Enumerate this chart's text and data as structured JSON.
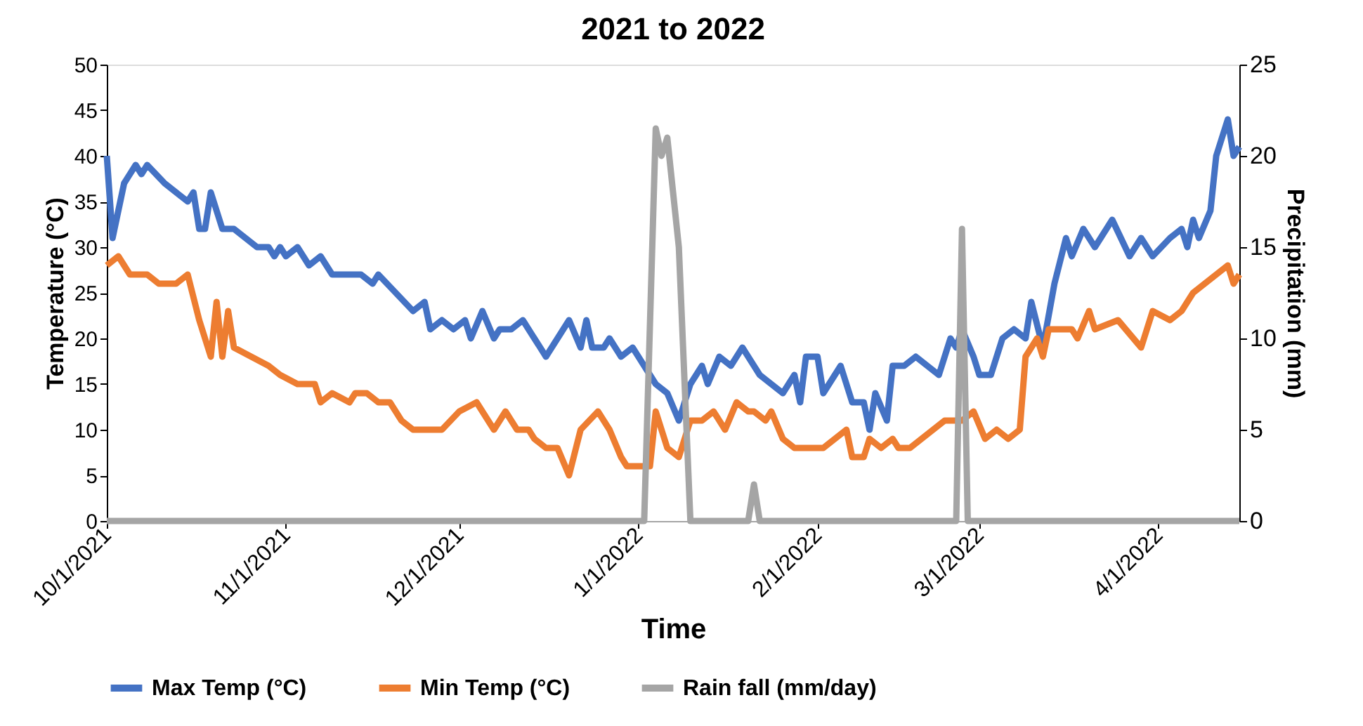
{
  "chart_data": {
    "type": "line",
    "title": "2021 to 2022",
    "xlabel": "Time",
    "ylabel": "Temperature (°C)",
    "y2label": "Precipitation (mm)",
    "xlim": [
      "2021-10-01",
      "2022-04-15"
    ],
    "xticks": [
      {
        "value": "2021-10-01",
        "label": "10/1/2021"
      },
      {
        "value": "2021-11-01",
        "label": "11/1/2021"
      },
      {
        "value": "2021-12-01",
        "label": "12/1/2021"
      },
      {
        "value": "2022-01-01",
        "label": "1/1/2022"
      },
      {
        "value": "2022-02-01",
        "label": "2/1/2022"
      },
      {
        "value": "2022-03-01",
        "label": "3/1/2022"
      },
      {
        "value": "2022-04-01",
        "label": "4/1/2022"
      }
    ],
    "ylim": [
      0,
      50
    ],
    "yticks": [
      0,
      5,
      10,
      15,
      20,
      25,
      30,
      35,
      40,
      45,
      50
    ],
    "y2lim": [
      0,
      25
    ],
    "y2ticks": [
      0,
      5,
      10,
      15,
      20,
      25
    ],
    "grid": false,
    "legend": "bottom",
    "line_style": "solid",
    "marker": "none",
    "series": [
      {
        "name": "Max Temp (°C)",
        "color": "#4472c4",
        "x": [
          "2021-10-01",
          "2021-10-02",
          "2021-10-04",
          "2021-10-06",
          "2021-10-07",
          "2021-10-08",
          "2021-10-11",
          "2021-10-13",
          "2021-10-15",
          "2021-10-16",
          "2021-10-17",
          "2021-10-18",
          "2021-10-19",
          "2021-10-21",
          "2021-10-23",
          "2021-10-25",
          "2021-10-27",
          "2021-10-29",
          "2021-10-30",
          "2021-10-31",
          "2021-11-01",
          "2021-11-03",
          "2021-11-05",
          "2021-11-07",
          "2021-11-09",
          "2021-11-12",
          "2021-11-14",
          "2021-11-16",
          "2021-11-17",
          "2021-11-20",
          "2021-11-23",
          "2021-11-25",
          "2021-11-26",
          "2021-11-28",
          "2021-11-30",
          "2021-12-02",
          "2021-12-03",
          "2021-12-05",
          "2021-12-07",
          "2021-12-08",
          "2021-12-10",
          "2021-12-12",
          "2021-12-14",
          "2021-12-16",
          "2021-12-18",
          "2021-12-20",
          "2021-12-22",
          "2021-12-23",
          "2021-12-24",
          "2021-12-26",
          "2021-12-27",
          "2021-12-29",
          "2021-12-31",
          "2022-01-02",
          "2022-01-04",
          "2022-01-06",
          "2022-01-08",
          "2022-01-10",
          "2022-01-12",
          "2022-01-13",
          "2022-01-15",
          "2022-01-17",
          "2022-01-19",
          "2022-01-22",
          "2022-01-24",
          "2022-01-26",
          "2022-01-28",
          "2022-01-29",
          "2022-01-30",
          "2022-02-01",
          "2022-02-02",
          "2022-02-05",
          "2022-02-07",
          "2022-02-09",
          "2022-02-10",
          "2022-02-11",
          "2022-02-13",
          "2022-02-14",
          "2022-02-16",
          "2022-02-18",
          "2022-02-20",
          "2022-02-22",
          "2022-02-24",
          "2022-02-25",
          "2022-02-26",
          "2022-02-28",
          "2022-03-01",
          "2022-03-03",
          "2022-03-05",
          "2022-03-07",
          "2022-03-09",
          "2022-03-10",
          "2022-03-12",
          "2022-03-14",
          "2022-03-16",
          "2022-03-17",
          "2022-03-19",
          "2022-03-21",
          "2022-03-24",
          "2022-03-27",
          "2022-03-29",
          "2022-03-31",
          "2022-04-03",
          "2022-04-05",
          "2022-04-06",
          "2022-04-07",
          "2022-04-08",
          "2022-04-10",
          "2022-04-11",
          "2022-04-13",
          "2022-04-14",
          "2022-04-15"
        ],
        "values": [
          40,
          31,
          37,
          39,
          38,
          39,
          37,
          36,
          35,
          36,
          32,
          32,
          36,
          32,
          32,
          31,
          30,
          30,
          29,
          30,
          29,
          30,
          28,
          29,
          27,
          27,
          27,
          26,
          27,
          25,
          23,
          24,
          21,
          22,
          21,
          22,
          20,
          23,
          20,
          21,
          21,
          22,
          20,
          18,
          20,
          22,
          19,
          22,
          19,
          19,
          20,
          18,
          19,
          17,
          15,
          14,
          11,
          15,
          17,
          15,
          18,
          17,
          19,
          16,
          15,
          14,
          16,
          13,
          18,
          18,
          14,
          17,
          13,
          13,
          10,
          14,
          11,
          17,
          17,
          18,
          17,
          16,
          20,
          19,
          21,
          18,
          16,
          16,
          20,
          21,
          20,
          24,
          19,
          26,
          31,
          29,
          32,
          30,
          33,
          29,
          31,
          29,
          31,
          32,
          30,
          33,
          31,
          34,
          40,
          44,
          40,
          41
        ]
      },
      {
        "name": "Min Temp (°C)",
        "color": "#ed7d31",
        "x": [
          "2021-10-01",
          "2021-10-03",
          "2021-10-05",
          "2021-10-08",
          "2021-10-10",
          "2021-10-13",
          "2021-10-15",
          "2021-10-17",
          "2021-10-19",
          "2021-10-20",
          "2021-10-21",
          "2021-10-22",
          "2021-10-23",
          "2021-10-26",
          "2021-10-29",
          "2021-10-31",
          "2021-11-03",
          "2021-11-06",
          "2021-11-07",
          "2021-11-09",
          "2021-11-12",
          "2021-11-13",
          "2021-11-15",
          "2021-11-17",
          "2021-11-19",
          "2021-11-21",
          "2021-11-23",
          "2021-11-26",
          "2021-11-28",
          "2021-12-01",
          "2021-12-04",
          "2021-12-07",
          "2021-12-09",
          "2021-12-11",
          "2021-12-13",
          "2021-12-14",
          "2021-12-16",
          "2021-12-18",
          "2021-12-20",
          "2021-12-22",
          "2021-12-25",
          "2021-12-27",
          "2021-12-29",
          "2021-12-30",
          "2022-01-03",
          "2022-01-04",
          "2022-01-06",
          "2022-01-08",
          "2022-01-10",
          "2022-01-12",
          "2022-01-14",
          "2022-01-16",
          "2022-01-18",
          "2022-01-20",
          "2022-01-21",
          "2022-01-23",
          "2022-01-24",
          "2022-01-26",
          "2022-01-28",
          "2022-01-31",
          "2022-02-02",
          "2022-02-06",
          "2022-02-07",
          "2022-02-09",
          "2022-02-10",
          "2022-02-12",
          "2022-02-14",
          "2022-02-15",
          "2022-02-17",
          "2022-02-19",
          "2022-02-21",
          "2022-02-23",
          "2022-02-26",
          "2022-02-28",
          "2022-03-02",
          "2022-03-04",
          "2022-03-06",
          "2022-03-08",
          "2022-03-09",
          "2022-03-11",
          "2022-03-12",
          "2022-03-13",
          "2022-03-17",
          "2022-03-18",
          "2022-03-20",
          "2022-03-21",
          "2022-03-25",
          "2022-03-29",
          "2022-03-31",
          "2022-04-03",
          "2022-04-05",
          "2022-04-07",
          "2022-04-09",
          "2022-04-11",
          "2022-04-13",
          "2022-04-14",
          "2022-04-15"
        ],
        "values": [
          28,
          29,
          27,
          27,
          26,
          26,
          27,
          22,
          18,
          24,
          18,
          23,
          19,
          18,
          17,
          16,
          15,
          15,
          13,
          14,
          13,
          14,
          14,
          13,
          13,
          11,
          10,
          10,
          10,
          12,
          13,
          10,
          12,
          10,
          10,
          9,
          8,
          8,
          5,
          10,
          12,
          10,
          7,
          6,
          6,
          12,
          8,
          7,
          11,
          11,
          12,
          10,
          13,
          12,
          12,
          11,
          12,
          9,
          8,
          8,
          8,
          10,
          7,
          7,
          9,
          8,
          9,
          8,
          8,
          9,
          10,
          11,
          11,
          12,
          9,
          10,
          9,
          10,
          18,
          20,
          18,
          21,
          21,
          20,
          23,
          21,
          22,
          19,
          23,
          22,
          23,
          25,
          26,
          27,
          28,
          26,
          27
        ]
      },
      {
        "name": "Rain fall (mm/day)",
        "color": "#a5a5a5",
        "axis": "y2",
        "x": [
          "2021-10-01",
          "2022-01-02",
          "2022-01-04",
          "2022-01-05",
          "2022-01-06",
          "2022-01-08",
          "2022-01-10",
          "2022-01-20",
          "2022-01-21",
          "2022-01-22",
          "2022-02-25",
          "2022-02-26",
          "2022-02-27",
          "2022-04-15"
        ],
        "values": [
          0,
          0,
          21.5,
          20,
          21,
          15,
          0,
          0,
          2,
          0,
          0,
          16,
          0,
          0
        ]
      }
    ]
  }
}
